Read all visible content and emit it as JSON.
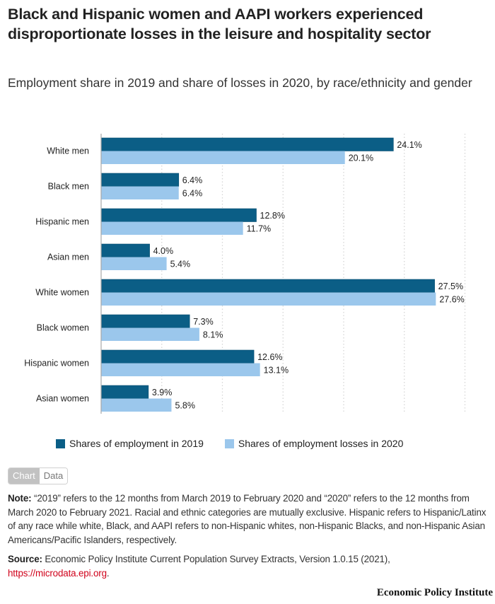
{
  "header": {
    "title": "Black and Hispanic women and AAPI workers experienced disproportionate losses in the leisure and hospitality sector",
    "subtitle": "Employment share in 2019 and share of losses in 2020, by race/ethnicity and gender"
  },
  "colors": {
    "series_2019": "#0b5e86",
    "series_2020": "#9bc7ec",
    "link": "#d0021b"
  },
  "chart_data": {
    "type": "bar",
    "orientation": "horizontal",
    "title": "Black and Hispanic women and AAPI workers experienced disproportionate losses in the leisure and hospitality sector",
    "subtitle": "Employment share in 2019 and share of losses in 2020, by race/ethnicity and gender",
    "xlabel": "",
    "ylabel": "",
    "xlim": [
      0,
      30
    ],
    "grid": true,
    "gridlines": [
      5,
      10,
      15,
      20,
      25,
      30
    ],
    "legend_position": "bottom",
    "categories": [
      "White men",
      "Black men",
      "Hispanic men",
      "Asian men",
      "White women",
      "Black women",
      "Hispanic women",
      "Asian women"
    ],
    "series": [
      {
        "name": "Shares of employment in 2019",
        "color": "#0b5e86",
        "values": [
          24.1,
          6.4,
          12.8,
          4.0,
          27.5,
          7.3,
          12.6,
          3.9
        ],
        "labels": [
          "24.1%",
          "6.4%",
          "12.8%",
          "4.0%",
          "27.5%",
          "7.3%",
          "12.6%",
          "3.9%"
        ]
      },
      {
        "name": "Shares of employment losses in 2020",
        "color": "#9bc7ec",
        "values": [
          20.1,
          6.4,
          11.7,
          5.4,
          27.6,
          8.1,
          13.1,
          5.8
        ],
        "labels": [
          "20.1%",
          "6.4%",
          "11.7%",
          "5.4%",
          "27.6%",
          "8.1%",
          "13.1%",
          "5.8%"
        ]
      }
    ]
  },
  "legend": [
    {
      "label": "Shares of employment in 2019"
    },
    {
      "label": "Shares of employment losses in 2020"
    }
  ],
  "toggle": {
    "chart_label": "Chart",
    "data_label": "Data"
  },
  "note": {
    "label": "Note:",
    "text": " “2019” refers to the 12 months from March 2019 to February 2020 and “2020” refers to the 12 months from March 2020 to February 2021. Racial and ethnic categories are mutually exclusive. Hispanic refers to Hispanic/Latinx of any race while white, Black, and AAPI refers to non-Hispanic whites, non-Hispanic Blacks, and non-Hispanic Asian Americans/Pacific Islanders, respectively."
  },
  "source": {
    "label": "Source:",
    "text": " Economic Policy Institute Current Population Survey Extracts, Version 1.0.15 (2021),",
    "link_text": "https://microdata.epi.org",
    "after_link": "."
  },
  "brand": "Economic Policy Institute"
}
